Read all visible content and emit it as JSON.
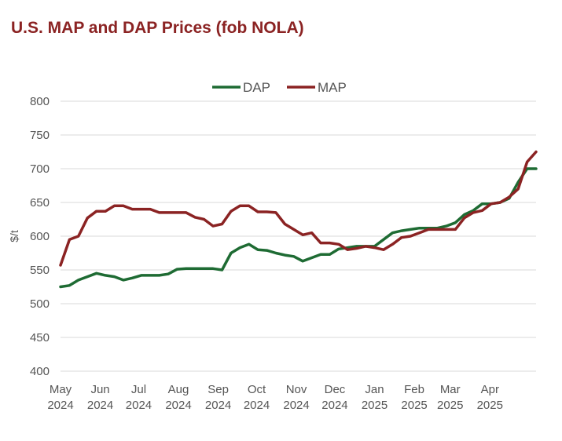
{
  "chart_data": {
    "type": "line",
    "title": "U.S. MAP and DAP Prices (fob NOLA)",
    "ylabel": "$/t",
    "xlabel": "",
    "ylim": [
      400,
      800
    ],
    "yticks": [
      400,
      450,
      500,
      550,
      600,
      650,
      700,
      750,
      800
    ],
    "x_tick_labels": [
      {
        "month": "May",
        "year": "2024",
        "date": "2024-05-01"
      },
      {
        "month": "Jun",
        "year": "2024",
        "date": "2024-06-01"
      },
      {
        "month": "Jul",
        "year": "2024",
        "date": "2024-07-01"
      },
      {
        "month": "Aug",
        "year": "2024",
        "date": "2024-08-01"
      },
      {
        "month": "Sep",
        "year": "2024",
        "date": "2024-09-01"
      },
      {
        "month": "Oct",
        "year": "2024",
        "date": "2024-10-01"
      },
      {
        "month": "Nov",
        "year": "2024",
        "date": "2024-11-01"
      },
      {
        "month": "Dec",
        "year": "2024",
        "date": "2024-12-01"
      },
      {
        "month": "Jan",
        "year": "2025",
        "date": "2025-01-01"
      },
      {
        "month": "Feb",
        "year": "2025",
        "date": "2025-02-01"
      },
      {
        "month": "Mar",
        "year": "2025",
        "date": "2025-03-01"
      },
      {
        "month": "Apr",
        "year": "2025",
        "date": "2025-04-01"
      }
    ],
    "grid": true,
    "legend_position": "top-center",
    "x": [
      "2024-05-01",
      "2024-05-08",
      "2024-05-15",
      "2024-05-22",
      "2024-05-29",
      "2024-06-05",
      "2024-06-12",
      "2024-06-19",
      "2024-06-26",
      "2024-07-03",
      "2024-07-10",
      "2024-07-17",
      "2024-07-24",
      "2024-07-31",
      "2024-08-07",
      "2024-08-14",
      "2024-08-21",
      "2024-08-28",
      "2024-09-04",
      "2024-09-11",
      "2024-09-18",
      "2024-09-25",
      "2024-10-02",
      "2024-10-09",
      "2024-10-16",
      "2024-10-23",
      "2024-10-30",
      "2024-11-06",
      "2024-11-13",
      "2024-11-20",
      "2024-11-27",
      "2024-12-04",
      "2024-12-11",
      "2024-12-18",
      "2024-12-25",
      "2025-01-01",
      "2025-01-08",
      "2025-01-15",
      "2025-01-22",
      "2025-01-29",
      "2025-02-05",
      "2025-02-12",
      "2025-02-19",
      "2025-02-26",
      "2025-03-05",
      "2025-03-12",
      "2025-03-19",
      "2025-03-26",
      "2025-04-02",
      "2025-04-09",
      "2025-04-16",
      "2025-04-23",
      "2025-04-30",
      "2025-05-07"
    ],
    "series": [
      {
        "name": "DAP",
        "color": "#1e6b33",
        "values": [
          525,
          527,
          535,
          540,
          545,
          542,
          540,
          535,
          538,
          542,
          542,
          542,
          544,
          551,
          552,
          552,
          552,
          552,
          550,
          575,
          583,
          588,
          580,
          579,
          575,
          572,
          570,
          563,
          568,
          573,
          573,
          581,
          583,
          585,
          585,
          585,
          595,
          605,
          608,
          610,
          612,
          612,
          612,
          615,
          620,
          632,
          638,
          648,
          648,
          650,
          656,
          680,
          700,
          700
        ]
      },
      {
        "name": "MAP",
        "color": "#8b2323",
        "values": [
          557,
          595,
          600,
          627,
          637,
          637,
          645,
          645,
          640,
          640,
          640,
          635,
          635,
          635,
          635,
          628,
          625,
          615,
          618,
          637,
          645,
          645,
          636,
          636,
          635,
          618,
          610,
          602,
          605,
          590,
          590,
          588,
          580,
          582,
          585,
          583,
          580,
          588,
          598,
          600,
          605,
          610,
          610,
          610,
          610,
          627,
          635,
          638,
          648,
          650,
          658,
          670,
          710,
          725
        ]
      }
    ]
  }
}
